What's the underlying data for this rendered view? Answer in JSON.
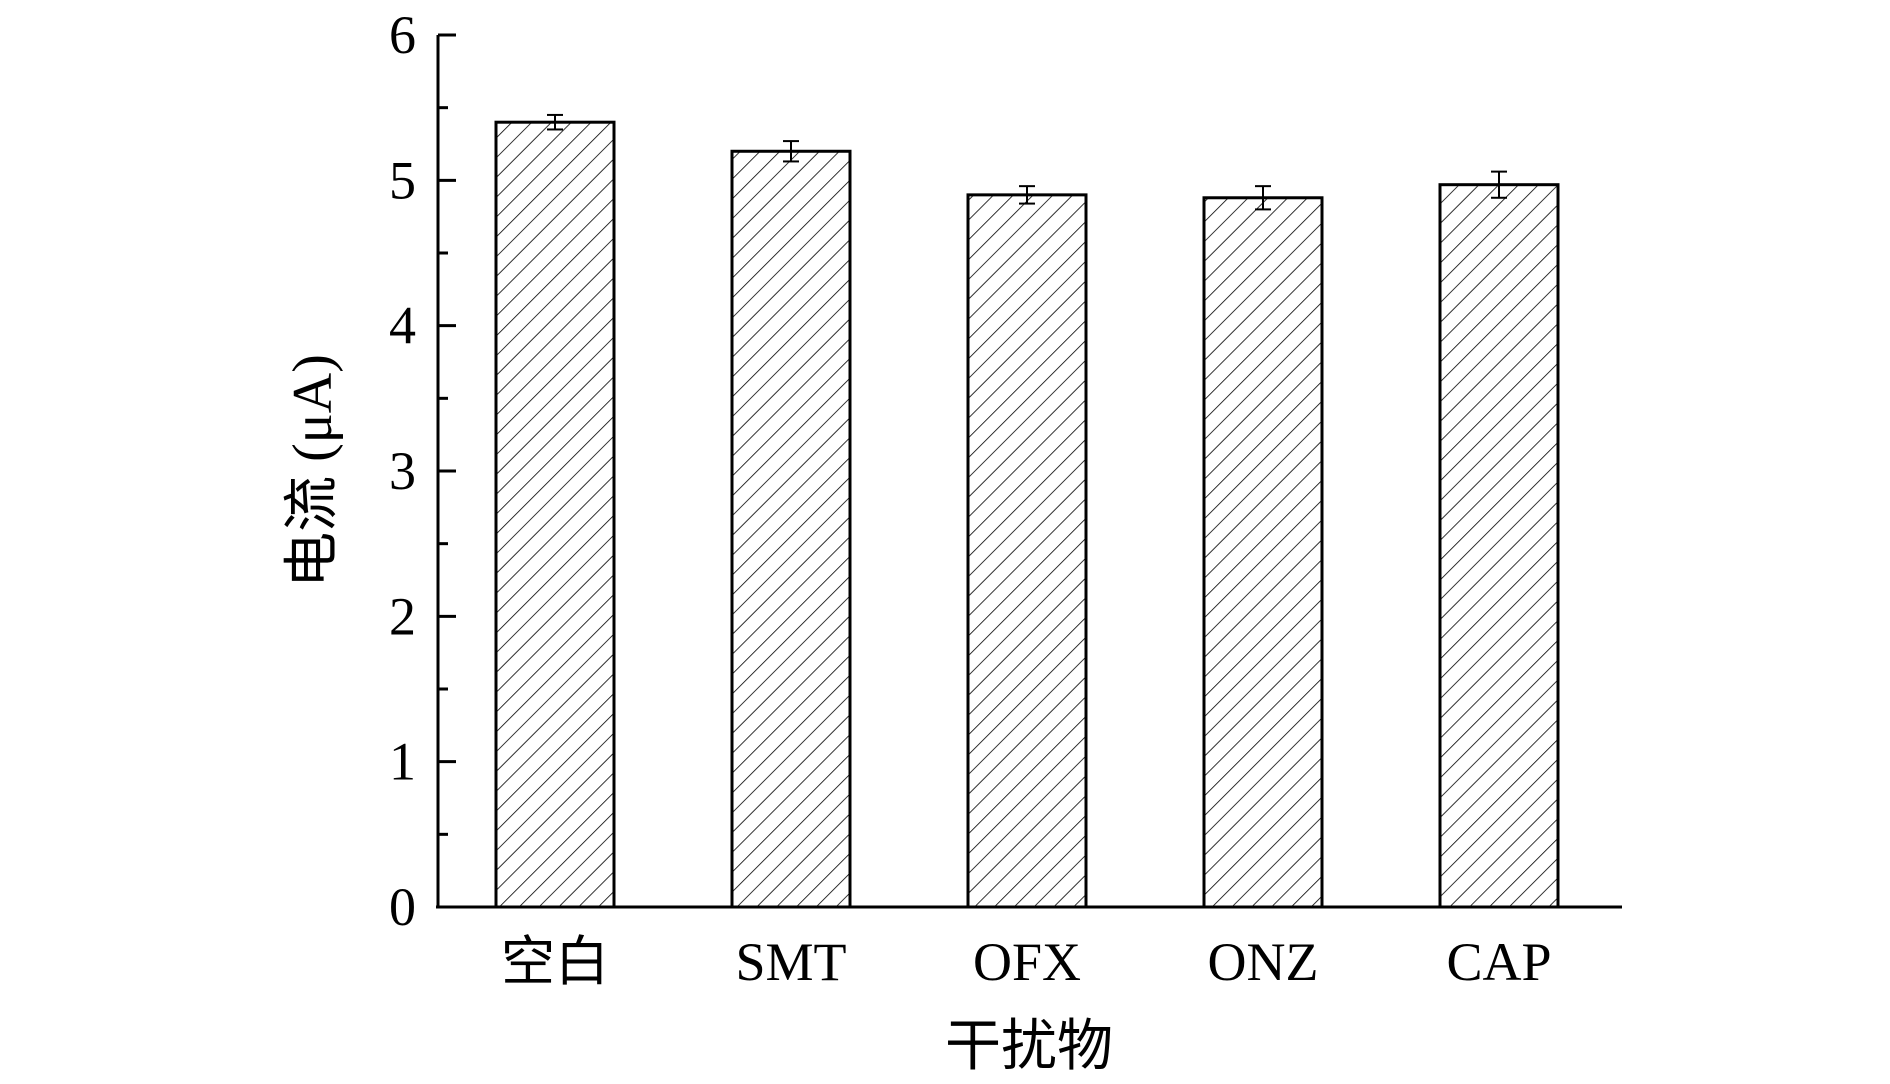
{
  "chart_data": {
    "type": "bar",
    "categories": [
      "空白",
      "SMT",
      "OFX",
      "ONZ",
      "CAP"
    ],
    "values": [
      5.4,
      5.2,
      4.9,
      4.88,
      4.97
    ],
    "errors": [
      0.05,
      0.07,
      0.06,
      0.08,
      0.09
    ],
    "xlabel": "干扰物",
    "ylabel": "电流 (μA)",
    "ylim": [
      0,
      6
    ],
    "yticks": [
      0,
      1,
      2,
      3,
      4,
      5,
      6
    ],
    "yticklabels": [
      "0",
      "1",
      "2",
      "3",
      "4",
      "5",
      "6"
    ],
    "bar_fill": "hatched",
    "bar_color": "#ffffff",
    "edge_color": "#000000",
    "grid": false,
    "legend": "none"
  }
}
